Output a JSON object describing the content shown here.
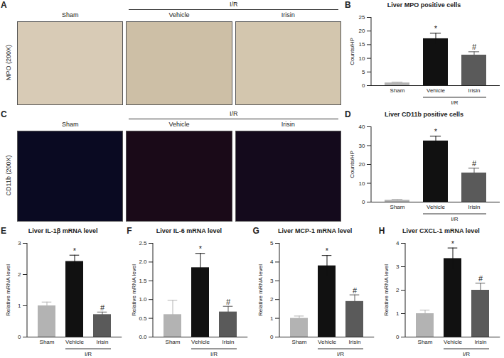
{
  "image_panels": [
    {
      "panel": "A",
      "stain": "MPO (200X)",
      "columns": [
        "Sham",
        "Vehicle",
        "Irisin"
      ],
      "group_label": "I/R"
    },
    {
      "panel": "C",
      "stain": "CD11b (200X)",
      "columns": [
        "Sham",
        "Vehicle",
        "Irisin"
      ],
      "group_label": "I/R"
    }
  ],
  "chart_data": [
    {
      "panel": "B",
      "type": "bar",
      "title": "Liver MPO positive cells",
      "y_label": "Counts/HP",
      "categories": [
        "Sham",
        "Vehicle",
        "Irisin"
      ],
      "group_label": "I/R",
      "values": [
        1.0,
        17.2,
        11.2
      ],
      "error": [
        0.3,
        2.0,
        1.2
      ],
      "significance": [
        null,
        "*",
        "#"
      ],
      "colors": [
        "#b3b3b3",
        "#111111",
        "#5a5a5a"
      ],
      "ylim": [
        0,
        25
      ],
      "yticks": [
        0,
        5,
        10,
        15,
        20,
        25
      ]
    },
    {
      "panel": "D",
      "type": "bar",
      "title": "Liver CD11b positive cells",
      "y_label": "Counts/HP",
      "categories": [
        "Sham",
        "Vehicle",
        "Irisin"
      ],
      "group_label": "I/R",
      "values": [
        1.0,
        32.5,
        15.5
      ],
      "error": [
        0.5,
        2.5,
        2.5
      ],
      "significance": [
        null,
        "*",
        "#"
      ],
      "colors": [
        "#b3b3b3",
        "#111111",
        "#5a5a5a"
      ],
      "ylim": [
        0,
        40
      ],
      "yticks": [
        0,
        10,
        20,
        30,
        40
      ]
    },
    {
      "panel": "E",
      "type": "bar",
      "title": "Liver IL-1β mRNA level",
      "y_label": "Relative mRNA level",
      "categories": [
        "Sham",
        "Vehicle",
        "Irisin"
      ],
      "group_label": "I/R",
      "values": [
        1.0,
        2.42,
        0.72
      ],
      "error": [
        0.12,
        0.2,
        0.08
      ],
      "significance": [
        null,
        "*",
        "#"
      ],
      "colors": [
        "#b3b3b3",
        "#111111",
        "#5a5a5a"
      ],
      "ylim": [
        0,
        3
      ],
      "yticks": [
        0,
        1,
        2,
        3
      ]
    },
    {
      "panel": "F",
      "type": "bar",
      "title": "Liver IL-6 mRNA level",
      "y_label": "Relative mRNA level",
      "categories": [
        "Sham",
        "Vehicle",
        "Irisin"
      ],
      "group_label": "I/R",
      "values": [
        0.6,
        1.85,
        0.67
      ],
      "error": [
        0.38,
        0.38,
        0.15
      ],
      "significance": [
        null,
        "*",
        "#"
      ],
      "colors": [
        "#b3b3b3",
        "#111111",
        "#5a5a5a"
      ],
      "ylim": [
        0,
        2.5
      ],
      "yticks": [
        {
          "value": 0,
          "label": "0.0"
        },
        0.5,
        {
          "value": 1,
          "label": "1.0"
        },
        1.5,
        {
          "value": 2,
          "label": "2.0"
        },
        2.5
      ]
    },
    {
      "panel": "G",
      "type": "bar",
      "title": "Liver MCP-1 mRNA level",
      "y_label": "Relative mRNA level",
      "categories": [
        "Sham",
        "Vehicle",
        "Irisin"
      ],
      "group_label": "I/R",
      "values": [
        1.0,
        3.8,
        1.9
      ],
      "error": [
        0.12,
        0.55,
        0.35
      ],
      "significance": [
        null,
        "*",
        "#"
      ],
      "colors": [
        "#b3b3b3",
        "#111111",
        "#5a5a5a"
      ],
      "ylim": [
        0,
        5
      ],
      "yticks": [
        0,
        1,
        2,
        3,
        4,
        5
      ]
    },
    {
      "panel": "H",
      "type": "bar",
      "title": "Liver CXCL-1 mRNA level",
      "y_label": "Relative mRNA level",
      "categories": [
        "Sham",
        "Vehicle",
        "Irisin"
      ],
      "group_label": "I/R",
      "values": [
        1.0,
        3.35,
        2.0
      ],
      "error": [
        0.15,
        0.45,
        0.3
      ],
      "significance": [
        null,
        "*",
        "#"
      ],
      "colors": [
        "#b3b3b3",
        "#111111",
        "#5a5a5a"
      ],
      "ylim": [
        0,
        4
      ],
      "yticks": [
        0,
        1,
        2,
        3,
        4
      ]
    }
  ]
}
